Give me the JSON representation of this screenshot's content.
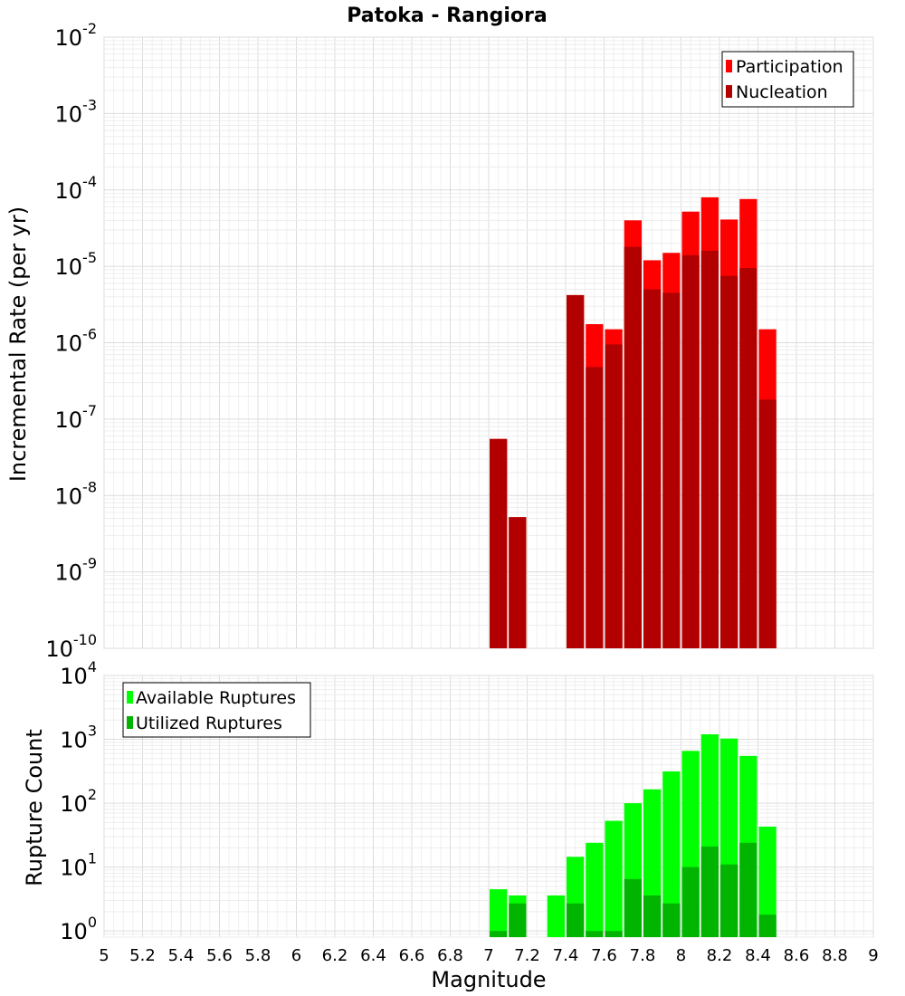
{
  "chart_data": [
    {
      "type": "bar",
      "title": "Patoka - Rangiora",
      "xlabel": "",
      "ylabel": "Incremental Rate (per yr)",
      "yscale": "log",
      "xlim": [
        5,
        9
      ],
      "ylim": [
        1e-10,
        0.01
      ],
      "y_tick_exponents": [
        "-10",
        "-9",
        "-8",
        "-7",
        "-6",
        "-5",
        "-4",
        "-3",
        "-2"
      ],
      "y_tick_base": "10",
      "legend_position": "top-right",
      "bin_width": 0.1,
      "series": [
        {
          "name": "Participation",
          "color": "#ff0000",
          "x": [
            7.05,
            7.15,
            7.45,
            7.55,
            7.65,
            7.75,
            7.85,
            7.95,
            8.05,
            8.15,
            8.25,
            8.35,
            8.45
          ],
          "values": [
            5.5e-08,
            5.2e-09,
            4.2e-06,
            1.75e-06,
            1.5e-06,
            4e-05,
            1.2e-05,
            1.5e-05,
            5.2e-05,
            8e-05,
            4.1e-05,
            7.6e-05,
            1.5e-06
          ]
        },
        {
          "name": "Nucleation",
          "color": "#b20000",
          "x": [
            7.05,
            7.15,
            7.45,
            7.55,
            7.65,
            7.75,
            7.85,
            7.95,
            8.05,
            8.15,
            8.25,
            8.35,
            8.45
          ],
          "values": [
            5.5e-08,
            5.2e-09,
            4.2e-06,
            4.8e-07,
            9.5e-07,
            1.8e-05,
            5e-06,
            4.5e-06,
            1.4e-05,
            1.6e-05,
            7.5e-06,
            9.5e-06,
            1.8e-07
          ]
        }
      ]
    },
    {
      "type": "bar",
      "title": "",
      "xlabel": "Magnitude",
      "ylabel": "Rupture Count",
      "yscale": "log",
      "xlim": [
        5,
        9
      ],
      "ylim": [
        0.8,
        10000
      ],
      "y_tick_exponents": [
        "0",
        "1",
        "2",
        "3",
        "4"
      ],
      "y_tick_base": "10",
      "x_ticks": [
        "5",
        "5.2",
        "5.4",
        "5.6",
        "5.8",
        "6",
        "6.2",
        "6.4",
        "6.6",
        "6.8",
        "7",
        "7.2",
        "7.4",
        "7.6",
        "7.8",
        "8",
        "8.2",
        "8.4",
        "8.6",
        "8.8",
        "9"
      ],
      "legend_position": "top-left",
      "bin_width": 0.1,
      "series": [
        {
          "name": "Available Ruptures",
          "color": "#00ff00",
          "x": [
            7.05,
            7.15,
            7.35,
            7.45,
            7.55,
            7.65,
            7.75,
            7.85,
            7.95,
            8.05,
            8.15,
            8.25,
            8.35,
            8.45
          ],
          "values": [
            4.5,
            3.6,
            3.6,
            14.5,
            24,
            53,
            100,
            165,
            315,
            660,
            1200,
            1030,
            550,
            43
          ]
        },
        {
          "name": "Utilized Ruptures",
          "color": "#00b400",
          "x": [
            7.05,
            7.15,
            7.35,
            7.45,
            7.55,
            7.65,
            7.75,
            7.85,
            7.95,
            8.05,
            8.15,
            8.25,
            8.35,
            8.45
          ],
          "values": [
            1,
            2.7,
            0,
            2.7,
            1,
            1,
            6.5,
            3.6,
            2.7,
            10,
            21,
            11,
            24,
            1.8
          ]
        }
      ]
    }
  ]
}
